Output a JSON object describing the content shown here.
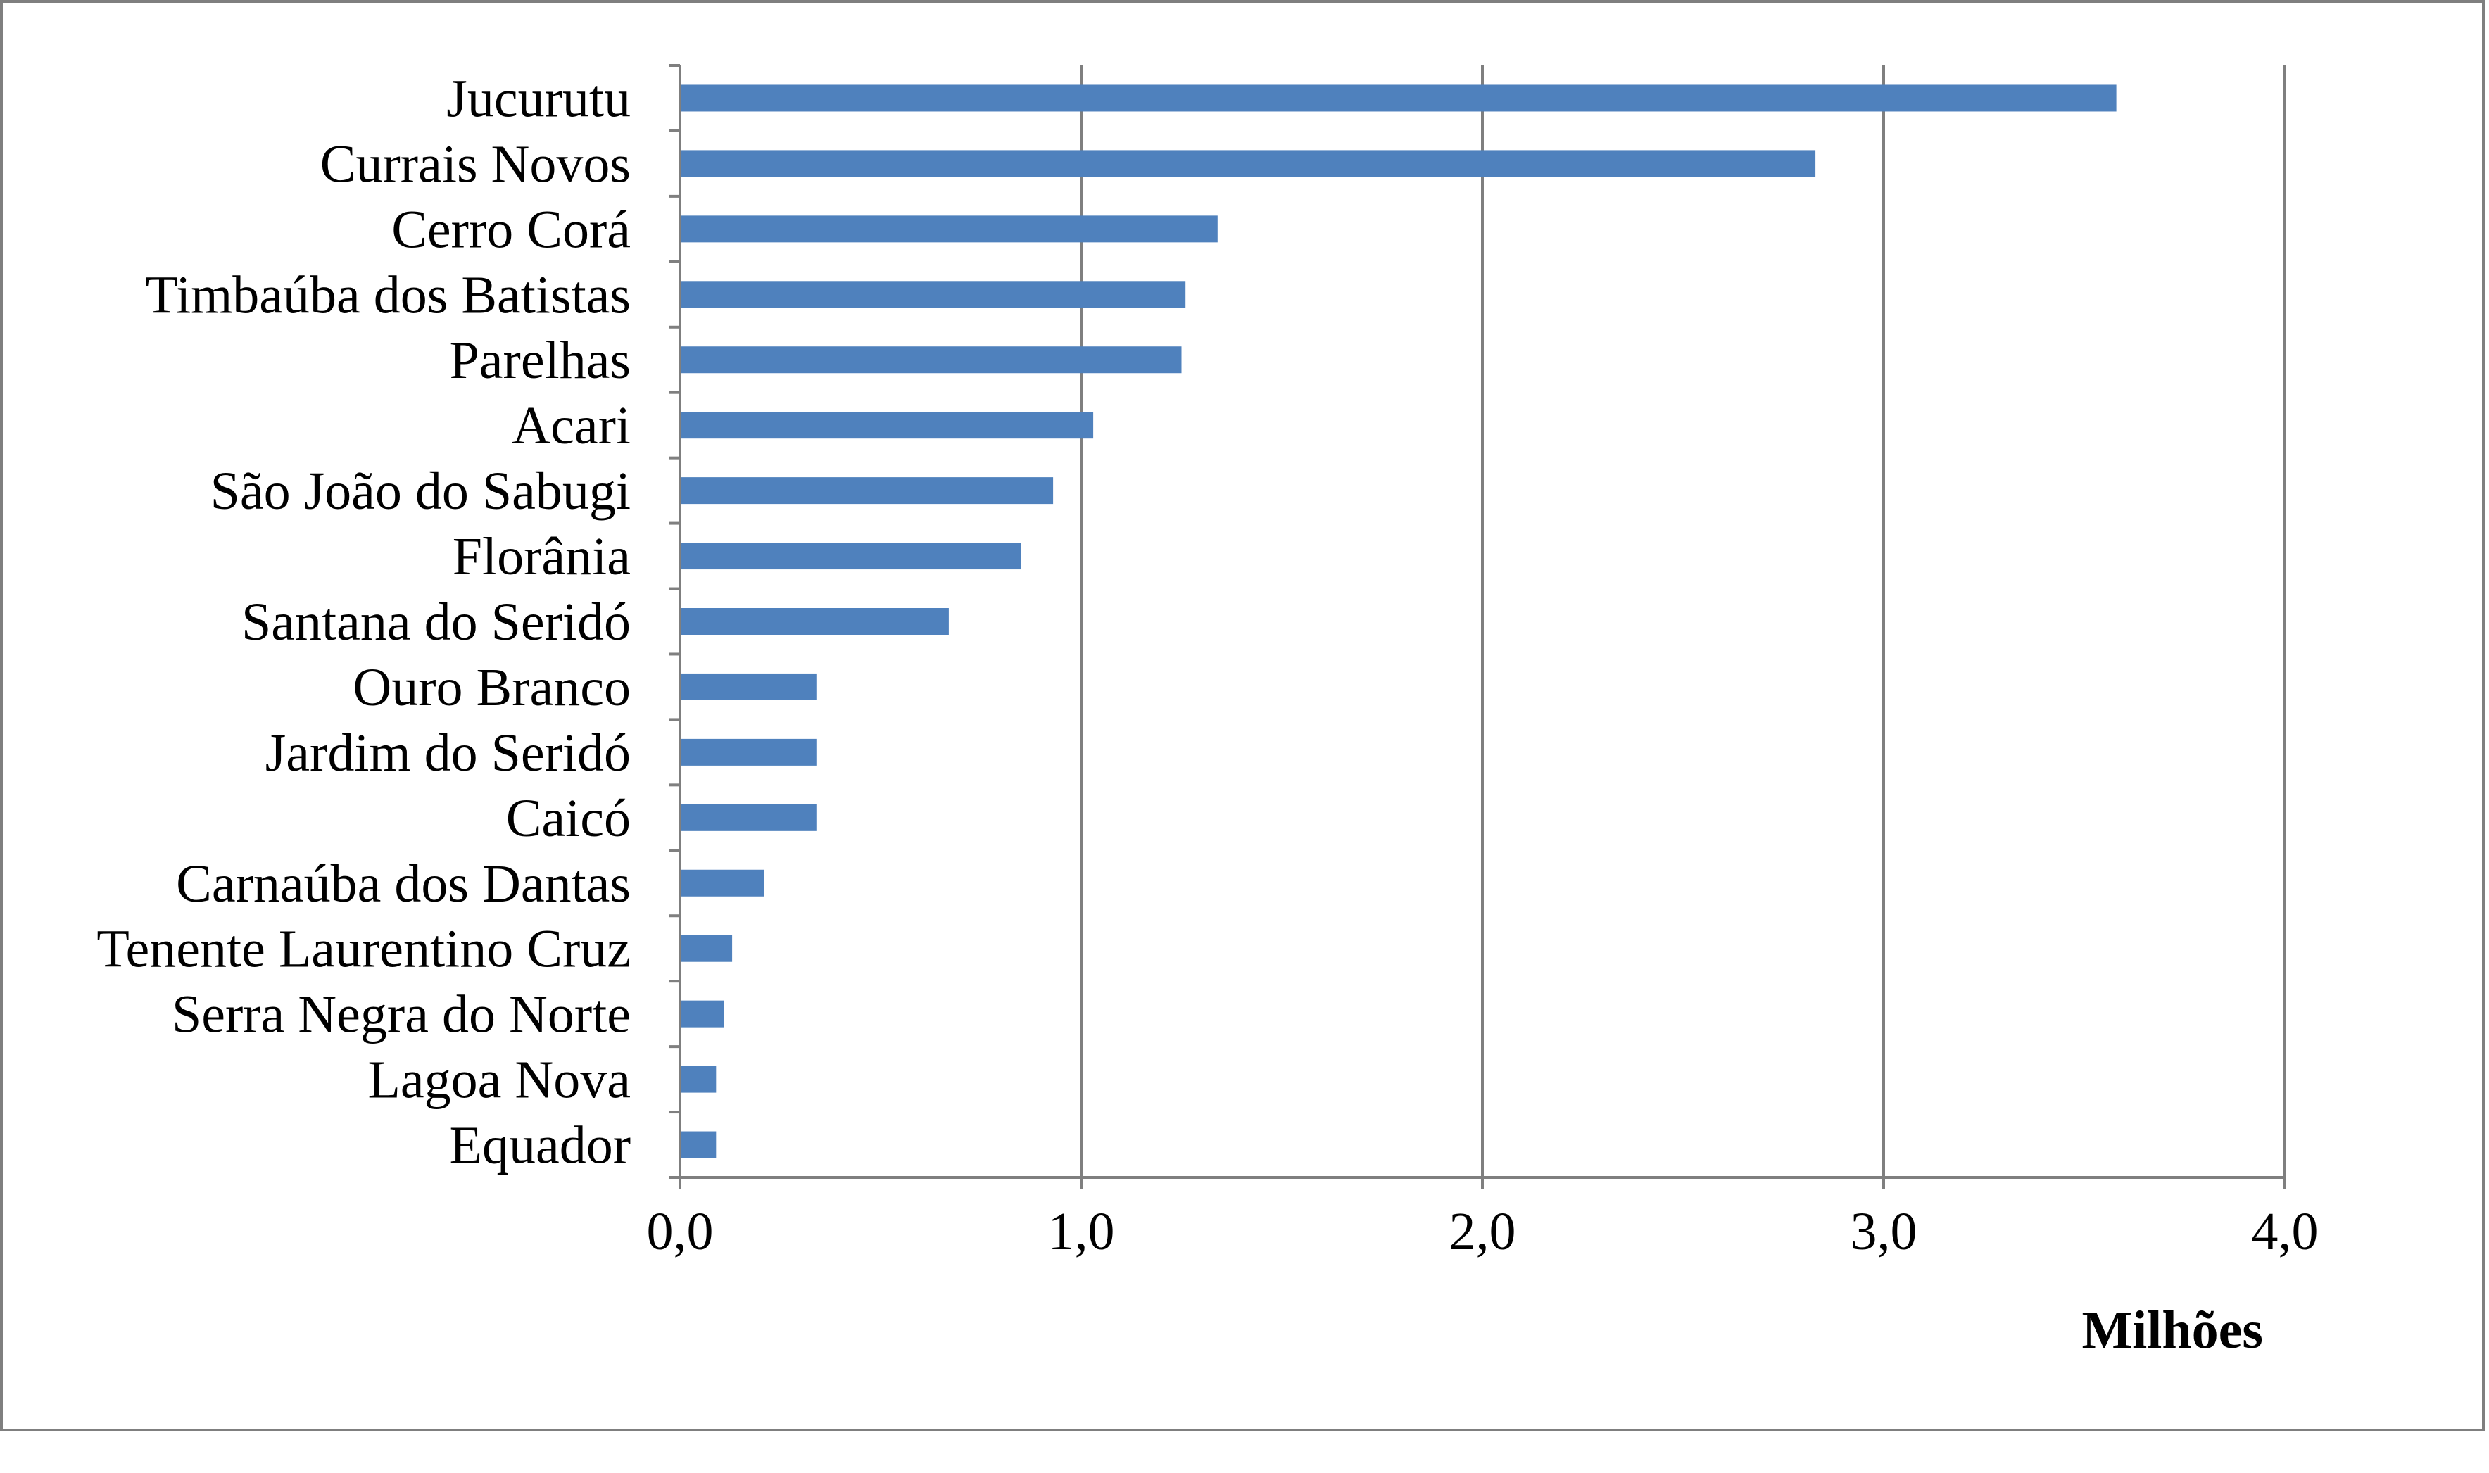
{
  "chart_data": {
    "type": "bar",
    "orientation": "horizontal",
    "categories": [
      "Jucurutu",
      "Currais Novos",
      "Cerro Corá",
      "Timbaúba dos Batistas",
      "Parelhas",
      "Acari",
      "São João do Sabugi",
      "Florânia",
      "Santana do Seridó",
      "Ouro Branco",
      "Jardim do Seridó",
      "Caicó",
      "Carnaúba dos Dantas",
      "Tenente Laurentino Cruz",
      "Serra Negra do Norte",
      "Lagoa Nova",
      "Equador"
    ],
    "values": [
      3.58,
      2.83,
      1.34,
      1.26,
      1.25,
      1.03,
      0.93,
      0.85,
      0.67,
      0.34,
      0.34,
      0.34,
      0.21,
      0.13,
      0.11,
      0.09,
      0.09
    ],
    "xlim": [
      0,
      4.0
    ],
    "x_ticks": [
      "0,0",
      "1,0",
      "2,0",
      "3,0",
      "4,0"
    ],
    "x_unit_label": "Milhões",
    "title": "",
    "xlabel": "",
    "ylabel": "",
    "grid": "vertical",
    "legend": "none",
    "colors": {
      "bar": "#4f81bd",
      "grid": "#7f7f7f",
      "frame": "#7f7f7f"
    }
  }
}
